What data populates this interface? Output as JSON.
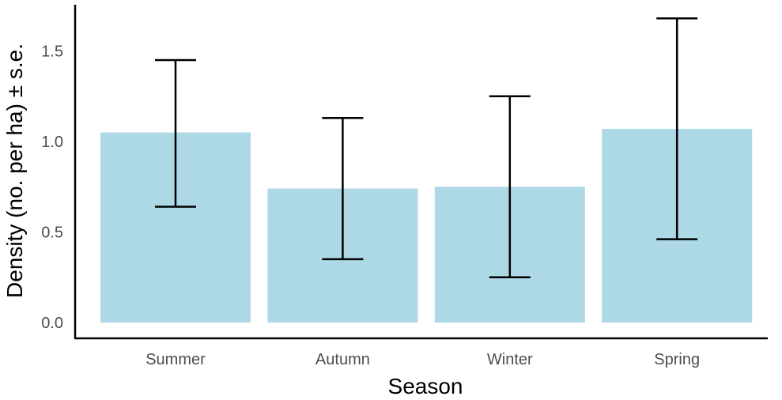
{
  "chart_data": {
    "type": "bar",
    "title": "",
    "xlabel": "Season",
    "ylabel": "Density (no. per ha) ± s.e.",
    "categories": [
      "Summer",
      "Autumn",
      "Winter",
      "Spring"
    ],
    "values": [
      1.05,
      0.74,
      0.75,
      1.07
    ],
    "error_bars": {
      "lower": [
        0.64,
        0.35,
        0.25,
        0.46
      ],
      "upper": [
        1.45,
        1.13,
        1.25,
        1.68
      ]
    },
    "ylim": [
      0,
      1.74
    ],
    "yticks": [
      "0.0",
      "0.5",
      "1.0",
      "1.5"
    ],
    "grid": false,
    "legend": "none",
    "colors": {
      "bar": "#add8e6",
      "error_bar": "#000000",
      "axis": "#000000"
    }
  }
}
